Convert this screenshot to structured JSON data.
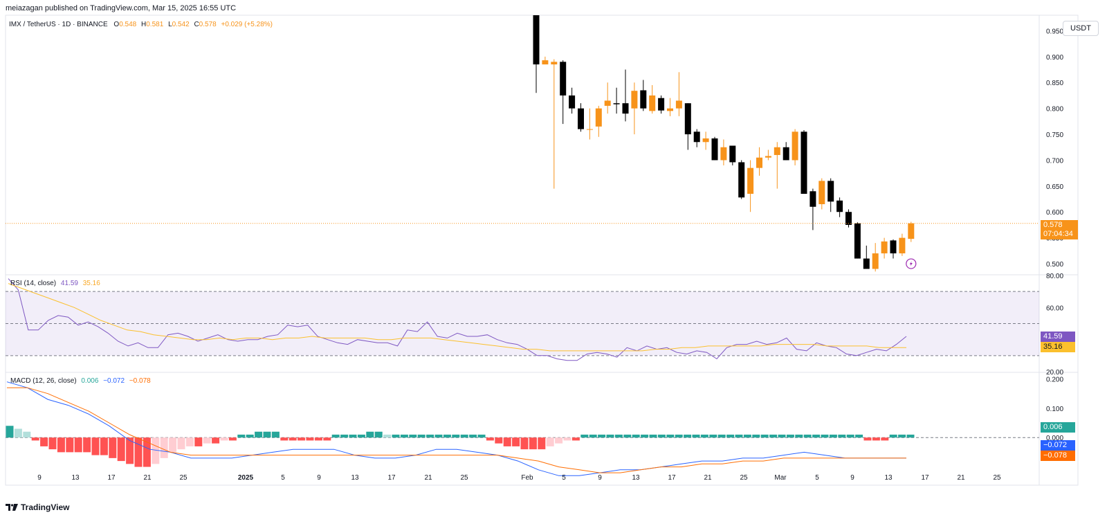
{
  "header": {
    "published": "meiazagan published on TradingView.com, Mar 15, 2025 16:55 UTC"
  },
  "footer": {
    "brand": "TradingView"
  },
  "price_axis": {
    "unit": "USDT"
  },
  "legend": {
    "symbol": "IMX / TetherUS · 1D · BINANCE",
    "o_label": "O",
    "o": "0.548",
    "h_label": "H",
    "h": "0.581",
    "l_label": "L",
    "l": "0.542",
    "c_label": "C",
    "c": "0.578",
    "change": "+0.029 (+5.28%)"
  },
  "last_price": {
    "value": "0.578",
    "countdown": "07:04:34"
  },
  "rsi_legend": {
    "name": "RSI (14, close)",
    "rsi": "41.59",
    "ma": "35.16"
  },
  "macd_legend": {
    "name": "MACD (12, 26, close)",
    "hist": "0.006",
    "macd": "−0.072",
    "signal": "−0.078"
  },
  "colors": {
    "up": "#f7931a",
    "down": "#000000",
    "rsi": "#7e57c2",
    "rsi_ma": "#fbc02d",
    "macd": "#2962ff",
    "signal": "#ff6d00",
    "hist_pos": "#26a69a",
    "hist_neg": "#ff5252"
  },
  "chart_data": [
    {
      "type": "candlestick",
      "start_date": "2024-12-06",
      "ylim": [
        0.48,
        0.98
      ],
      "yticks": [
        "0.950",
        "0.900",
        "0.850",
        "0.800",
        "0.750",
        "0.700",
        "0.650",
        "0.600",
        "0.550",
        "0.500"
      ],
      "xticks": [
        "9",
        "13",
        "17",
        "21",
        "25",
        "2025",
        "5",
        "9",
        "13",
        "17",
        "21",
        "25",
        "Feb",
        "5",
        "9",
        "13",
        "17",
        "21",
        "25",
        "Mar",
        "5",
        "9",
        "13",
        "17",
        "21",
        "25"
      ],
      "candles": [
        [
          0.98,
          0.98,
          0.83,
          0.885
        ],
        [
          0.885,
          0.9,
          0.885,
          0.893
        ],
        [
          0.885,
          0.895,
          0.645,
          0.89
        ],
        [
          0.89,
          0.893,
          0.77,
          0.825
        ],
        [
          0.825,
          0.84,
          0.79,
          0.8
        ],
        [
          0.8,
          0.81,
          0.755,
          0.76
        ],
        [
          0.76,
          0.8,
          0.74,
          0.76
        ],
        [
          0.765,
          0.805,
          0.745,
          0.8
        ],
        [
          0.805,
          0.85,
          0.79,
          0.815
        ],
        [
          0.81,
          0.84,
          0.79,
          0.808
        ],
        [
          0.81,
          0.875,
          0.775,
          0.79
        ],
        [
          0.8,
          0.85,
          0.75,
          0.834
        ],
        [
          0.835,
          0.855,
          0.795,
          0.8
        ],
        [
          0.795,
          0.845,
          0.79,
          0.825
        ],
        [
          0.82,
          0.825,
          0.79,
          0.796
        ],
        [
          0.795,
          0.82,
          0.785,
          0.8
        ],
        [
          0.8,
          0.87,
          0.785,
          0.815
        ],
        [
          0.81,
          0.81,
          0.72,
          0.75
        ],
        [
          0.755,
          0.76,
          0.725,
          0.735
        ],
        [
          0.735,
          0.755,
          0.72,
          0.742
        ],
        [
          0.742,
          0.745,
          0.7,
          0.7
        ],
        [
          0.7,
          0.74,
          0.69,
          0.725
        ],
        [
          0.728,
          0.728,
          0.69,
          0.696
        ],
        [
          0.696,
          0.7,
          0.625,
          0.628
        ],
        [
          0.635,
          0.7,
          0.6,
          0.685
        ],
        [
          0.685,
          0.725,
          0.67,
          0.705
        ],
        [
          0.705,
          0.72,
          0.7,
          0.708
        ],
        [
          0.71,
          0.735,
          0.645,
          0.725
        ],
        [
          0.725,
          0.735,
          0.7,
          0.7
        ],
        [
          0.7,
          0.76,
          0.69,
          0.755
        ],
        [
          0.755,
          0.758,
          0.635,
          0.635
        ],
        [
          0.64,
          0.645,
          0.565,
          0.61
        ],
        [
          0.615,
          0.665,
          0.605,
          0.66
        ],
        [
          0.66,
          0.665,
          0.6,
          0.62
        ],
        [
          0.622,
          0.628,
          0.59,
          0.6
        ],
        [
          0.6,
          0.605,
          0.57,
          0.575
        ],
        [
          0.578,
          0.58,
          0.51,
          0.51
        ],
        [
          0.51,
          0.535,
          0.49,
          0.49
        ],
        [
          0.49,
          0.54,
          0.485,
          0.52
        ],
        [
          0.52,
          0.55,
          0.51,
          0.543
        ],
        [
          0.545,
          0.547,
          0.51,
          0.52
        ],
        [
          0.52,
          0.558,
          0.515,
          0.55
        ],
        [
          0.548,
          0.581,
          0.542,
          0.578
        ]
      ]
    },
    {
      "type": "line",
      "name": "RSI (14, close)",
      "ylim": [
        20,
        80
      ],
      "yticks": [
        "80.00",
        "60.00",
        "20.00"
      ],
      "bands": [
        70,
        50,
        30
      ],
      "rsi": [
        78,
        71,
        46,
        46,
        52,
        55,
        54,
        49,
        51,
        48,
        44,
        39,
        36,
        38,
        35,
        35,
        43,
        44,
        42,
        39,
        41,
        43,
        40,
        39,
        40,
        40,
        42,
        43,
        49,
        48,
        49,
        42,
        40,
        38,
        37,
        40,
        39,
        38,
        38,
        36,
        46,
        45,
        51,
        42,
        41,
        44,
        42,
        42,
        43,
        40,
        38,
        37,
        34,
        30,
        30,
        28,
        27,
        27,
        31,
        32,
        31,
        29,
        35,
        33,
        36,
        34,
        35,
        32,
        31,
        33,
        32,
        28,
        35,
        37,
        37,
        39,
        37,
        38,
        41,
        34,
        33,
        38,
        36,
        35,
        31,
        30,
        32,
        34,
        33,
        37,
        42
      ],
      "rsi_ma": [
        75,
        72,
        69,
        66,
        63,
        60,
        56,
        52,
        49,
        46,
        45,
        43,
        42,
        41,
        40,
        40,
        41,
        40,
        41,
        41,
        40,
        41,
        41,
        42,
        41,
        41,
        41,
        41,
        40,
        40,
        41,
        41,
        41,
        40,
        39,
        38,
        37,
        36,
        35,
        34,
        34,
        33,
        33,
        33,
        33,
        33,
        33,
        33,
        33,
        34,
        34,
        35,
        35,
        36,
        36,
        36,
        36,
        36,
        37,
        37,
        37,
        37,
        36,
        36,
        36,
        36,
        35,
        35,
        35
      ]
    },
    {
      "type": "bar",
      "name": "MACD (12, 26, close)",
      "ylim": [
        -0.16,
        0.22
      ],
      "yticks": [
        "0.200",
        "0.100",
        "0.000"
      ],
      "macd_points": [
        0.19,
        0.17,
        0.13,
        0.11,
        0.08,
        0.04,
        -0.01,
        -0.04,
        -0.05,
        -0.07,
        -0.07,
        -0.07,
        -0.06,
        -0.05,
        -0.04,
        -0.04,
        -0.04,
        -0.06,
        -0.07,
        -0.07,
        -0.06,
        -0.04,
        -0.04,
        -0.05,
        -0.06,
        -0.08,
        -0.11,
        -0.13,
        -0.13,
        -0.12,
        -0.11,
        -0.11,
        -0.1,
        -0.09,
        -0.08,
        -0.08,
        -0.07,
        -0.07,
        -0.06,
        -0.05,
        -0.06,
        -0.07,
        -0.07,
        -0.07,
        -0.07
      ],
      "signal_points": [
        0.17,
        0.17,
        0.15,
        0.12,
        0.09,
        0.05,
        0.01,
        -0.02,
        -0.05,
        -0.06,
        -0.06,
        -0.06,
        -0.06,
        -0.06,
        -0.06,
        -0.06,
        -0.06,
        -0.06,
        -0.06,
        -0.06,
        -0.06,
        -0.06,
        -0.06,
        -0.06,
        -0.06,
        -0.07,
        -0.08,
        -0.1,
        -0.11,
        -0.12,
        -0.12,
        -0.11,
        -0.1,
        -0.1,
        -0.09,
        -0.09,
        -0.08,
        -0.08,
        -0.07,
        -0.07,
        -0.07,
        -0.07,
        -0.07,
        -0.07,
        -0.07
      ],
      "histogram": [
        0.04,
        0.03,
        0.02,
        -0.01,
        -0.03,
        -0.04,
        -0.05,
        -0.05,
        -0.05,
        -0.05,
        -0.06,
        -0.06,
        -0.07,
        -0.08,
        -0.09,
        -0.1,
        -0.1,
        -0.09,
        -0.07,
        -0.05,
        -0.04,
        -0.03,
        -0.03,
        -0.02,
        -0.02,
        -0.01,
        -0.01,
        0.01,
        0.01,
        0.02,
        0.02,
        0.02,
        -0.01,
        -0.01,
        -0.01,
        -0.01,
        -0.01,
        -0.01,
        0.01,
        0.01,
        0.01,
        0.01,
        0.02,
        0.02,
        0.01,
        0.01,
        0.01,
        0.01,
        0.01,
        0.01,
        0.01,
        0.01,
        0.01,
        0.01,
        0.01,
        0.01,
        -0.01,
        -0.02,
        -0.03,
        -0.03,
        -0.04,
        -0.04,
        -0.04,
        -0.03,
        -0.02,
        -0.01,
        -0.01,
        0.01,
        0.01,
        0.01,
        0.01,
        0.01,
        0.01,
        0.01,
        0.01,
        0.01,
        0.01,
        0.01,
        0.01,
        0.01,
        0.01,
        0.01,
        0.01,
        0.01,
        0.01,
        0.01,
        0.01,
        0.01,
        0.01,
        0.01,
        0.01,
        0.01,
        0.01,
        0.01,
        0.01,
        0.01,
        0.01,
        0.01,
        0.01,
        0.01,
        -0.01,
        -0.01,
        -0.01,
        0.01,
        0.01,
        0.01
      ]
    }
  ]
}
